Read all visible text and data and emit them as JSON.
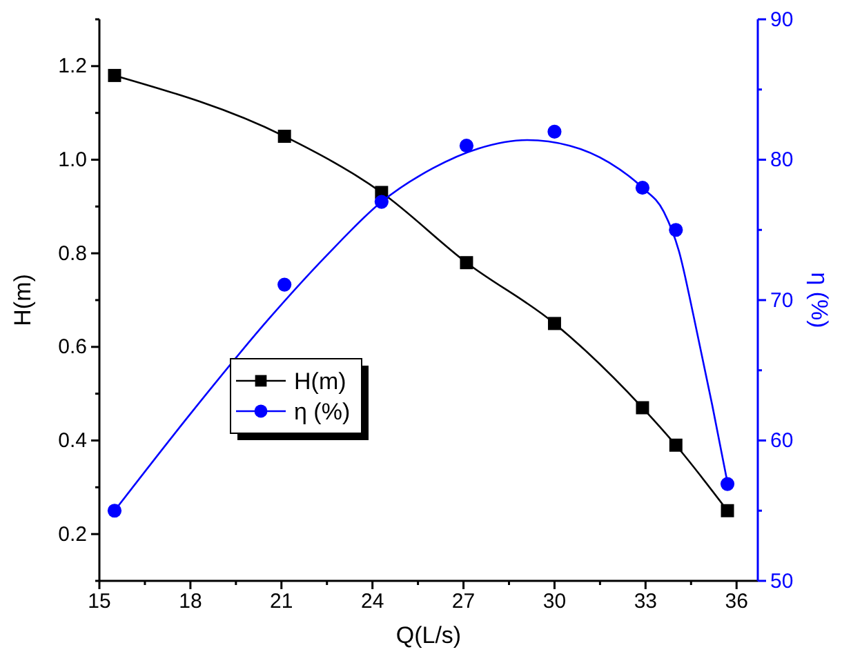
{
  "chart_data": {
    "type": "line",
    "xlabel": "Q(L/s)",
    "ylabel": "H(m)",
    "y2label": "η (%)",
    "xlim": [
      15,
      36.7
    ],
    "xticks": [
      15,
      {
        "value": 16.5,
        "label": null
      },
      18,
      {
        "value": 19.5,
        "label": null
      },
      21,
      {
        "value": 22.5,
        "label": null
      },
      24,
      {
        "value": 25.5,
        "label": null
      },
      27,
      {
        "value": 28.5,
        "label": null
      },
      30,
      {
        "value": 31.5,
        "label": null
      },
      33,
      {
        "value": 34.5,
        "label": null
      },
      36
    ],
    "ylim": [
      0.1,
      1.3
    ],
    "yticks": [
      {
        "value": 0.1,
        "label": null
      },
      0.2,
      {
        "value": 0.3,
        "label": null
      },
      0.4,
      {
        "value": 0.5,
        "label": null
      },
      0.6,
      {
        "value": 0.7,
        "label": null
      },
      0.8,
      {
        "value": 0.9,
        "label": null
      },
      {
        "value": 1,
        "label": "1.0"
      },
      {
        "value": 1.1,
        "label": null
      },
      1.2,
      {
        "value": 1.3,
        "label": null
      }
    ],
    "y2lim": [
      50,
      90
    ],
    "y2ticks": [
      50,
      {
        "value": 55,
        "label": null
      },
      60,
      {
        "value": 65,
        "label": null
      },
      70,
      {
        "value": 75,
        "label": null
      },
      80,
      {
        "value": 85,
        "label": null
      },
      90
    ],
    "legend": "left",
    "grid": false,
    "series": [
      {
        "name": "H(m)",
        "marker": "square",
        "color": "#000000",
        "x": [
          15.5,
          21.1,
          24.3,
          27.1,
          30.0,
          32.9,
          34.0,
          35.7
        ],
        "values": [
          1.18,
          1.05,
          0.93,
          0.78,
          0.65,
          0.47,
          0.39,
          0.25
        ]
      },
      {
        "name": "η (%)",
        "type": "scatter",
        "marker": "circle",
        "axis": "y2",
        "color": "#0000ff",
        "x": [
          15.5,
          21.1,
          24.3,
          27.1,
          30.0,
          32.9,
          34.0,
          35.7
        ],
        "values": [
          55,
          71.1,
          77,
          81,
          82,
          78,
          75,
          56.9
        ]
      },
      {
        "type": "line",
        "marker": "none",
        "axis": "y2",
        "color": "#0000ff",
        "x": [
          15.5,
          18,
          20.6,
          22.5,
          24.3,
          26,
          27.5,
          29.1,
          30.5,
          31.8,
          32.9,
          33.6,
          34.1,
          34.6,
          35.2,
          35.7
        ],
        "values": [
          55,
          61.9,
          68.7,
          73.2,
          77,
          79.4,
          80.8,
          81.4,
          81,
          79.8,
          78,
          76.3,
          73.5,
          68.7,
          62.5,
          57
        ]
      }
    ]
  }
}
